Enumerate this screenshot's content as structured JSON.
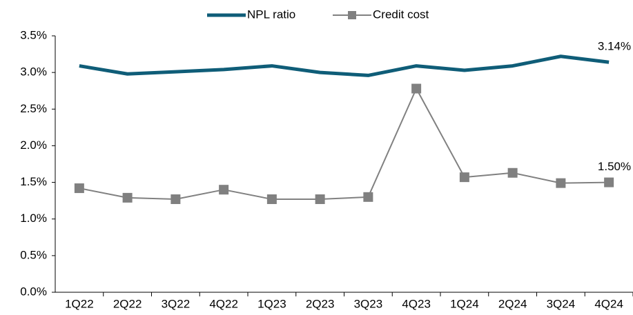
{
  "chart_data": {
    "type": "line",
    "categories": [
      "1Q22",
      "2Q22",
      "3Q22",
      "4Q22",
      "1Q23",
      "2Q23",
      "3Q23",
      "4Q23",
      "1Q24",
      "2Q24",
      "3Q24",
      "4Q24"
    ],
    "series": [
      {
        "name": "NPL ratio",
        "color": "#0f5d78",
        "marker": "none",
        "values": [
          3.09,
          2.98,
          3.01,
          3.04,
          3.09,
          3.0,
          2.96,
          3.09,
          3.03,
          3.09,
          3.22,
          3.14
        ],
        "value_labels": [
          null,
          null,
          null,
          null,
          null,
          null,
          null,
          null,
          null,
          null,
          null,
          "3.14%"
        ]
      },
      {
        "name": "Credit cost",
        "color": "#808080",
        "marker": "square",
        "values": [
          1.42,
          1.29,
          1.27,
          1.4,
          1.27,
          1.27,
          1.3,
          2.78,
          1.57,
          1.63,
          1.49,
          1.5
        ],
        "value_labels": [
          null,
          null,
          null,
          null,
          null,
          null,
          null,
          null,
          null,
          null,
          null,
          "1.50%"
        ]
      }
    ],
    "ylim": [
      0,
      3.5
    ],
    "yticks": [
      {
        "value": 0,
        "label": "0.0%"
      },
      {
        "value": 0.5,
        "label": "0.5%"
      },
      {
        "value": 1,
        "label": "1.0%"
      },
      {
        "value": 1.5,
        "label": "1.5%"
      },
      {
        "value": 2,
        "label": "2.0%"
      },
      {
        "value": 2.5,
        "label": "2.5%"
      },
      {
        "value": 3,
        "label": "3.0%"
      },
      {
        "value": 3.5,
        "label": "3.5%"
      }
    ],
    "grid": false,
    "legend": "top"
  }
}
